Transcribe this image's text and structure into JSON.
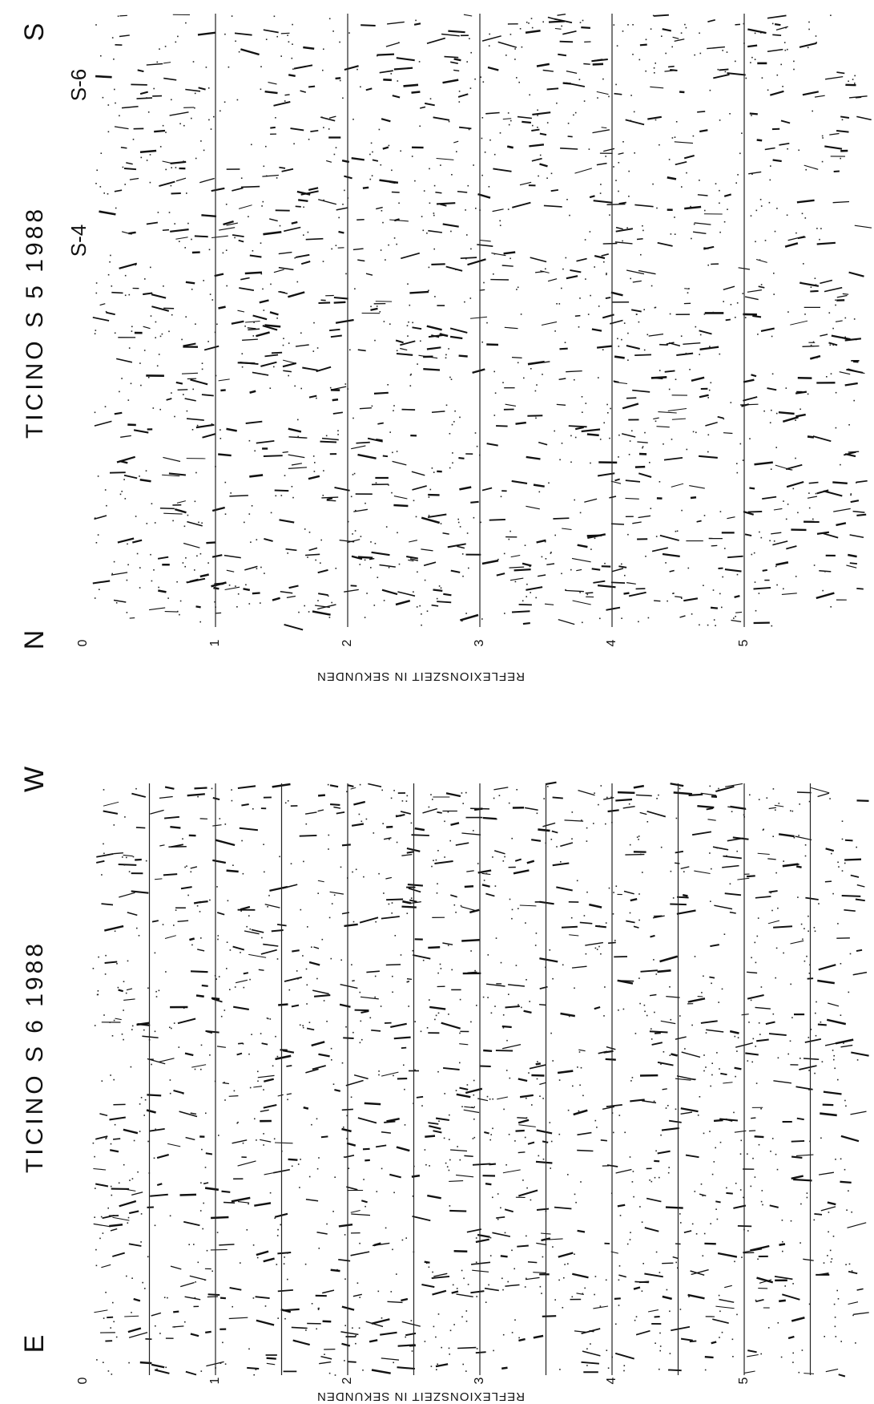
{
  "panels": [
    {
      "title": "TICINO S 5 1988",
      "top_label": "S",
      "bottom_label": "N",
      "markers": [
        "S-6",
        "S-4"
      ],
      "ticks": [
        0,
        1,
        2,
        3,
        4,
        5
      ],
      "axis_title": "REFLEXIONSZEIT IN SEKUNDEN"
    },
    {
      "title": "TICINO S 6 1988",
      "top_label": "W",
      "bottom_label": "E",
      "ticks": [
        0,
        1,
        2,
        3,
        4,
        5
      ],
      "axis_title": "REFLEXIONSZEIT IN SEKUNDEN"
    }
  ]
}
